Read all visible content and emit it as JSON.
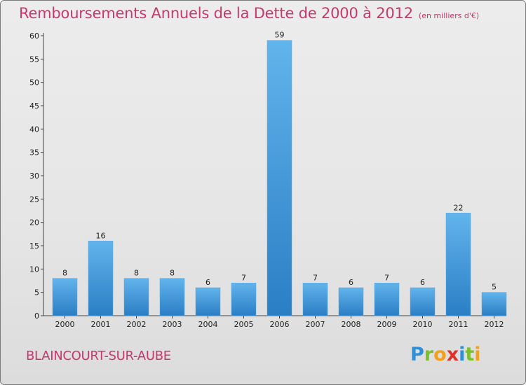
{
  "title": "Remboursements Annuels de la Dette de 2000 à 2012",
  "subtitle": "(en milliers d'€)",
  "commune": "BLAINCOURT-SUR-AUBE",
  "logo": {
    "letters": [
      "P",
      "r",
      "o",
      "x",
      "i",
      "t",
      "i"
    ],
    "colors": [
      "#2e8fd8",
      "#7bbf2a",
      "#f2a01c",
      "#e0302a",
      "#2e8fd8",
      "#7bbf2a",
      "#f2a01c"
    ]
  },
  "colors": {
    "title": "#c8386e",
    "bar_light": "#62b4ec",
    "bar_dark": "#2a7ec4"
  },
  "chart_data": {
    "type": "bar",
    "categories": [
      "2000",
      "2001",
      "2002",
      "2003",
      "2004",
      "2005",
      "2006",
      "2007",
      "2008",
      "2009",
      "2010",
      "2011",
      "2012"
    ],
    "values": [
      8,
      16,
      8,
      8,
      6,
      7,
      59,
      7,
      6,
      7,
      6,
      22,
      5
    ],
    "yticks": [
      0,
      5,
      10,
      15,
      20,
      25,
      30,
      35,
      40,
      45,
      50,
      55,
      60
    ],
    "ylim": [
      0,
      60
    ],
    "grid": false
  }
}
